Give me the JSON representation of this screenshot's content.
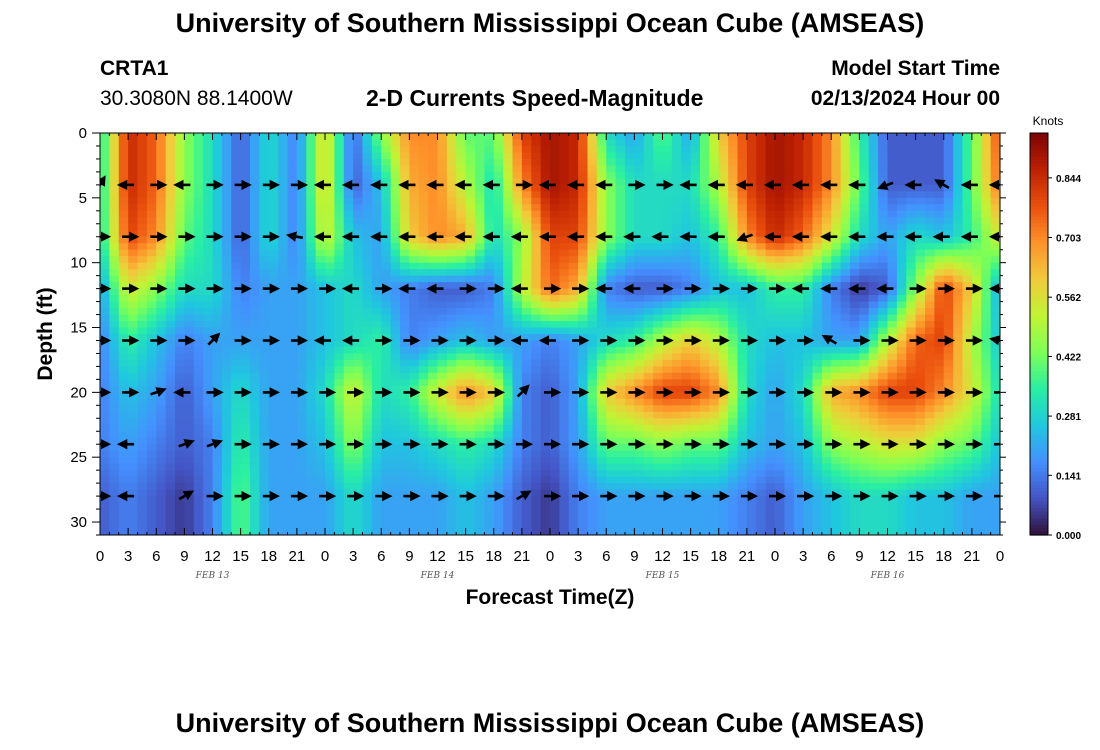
{
  "header": {
    "title": "University of Southern Mississippi Ocean Cube (AMSEAS)",
    "station": "CRTA1",
    "coords": "30.3080N  88.1400W",
    "plot_title": "2-D Currents Speed-Magnitude",
    "model_start_label": "Model Start Time",
    "model_start_value": "02/13/2024 Hour 00"
  },
  "footer": {
    "title": "University of Southern Mississippi Ocean Cube (AMSEAS)"
  },
  "colorbar": {
    "units": "Knots",
    "ticks": [
      "0.000",
      "0.141",
      "0.281",
      "0.422",
      "0.562",
      "0.703",
      "0.844"
    ],
    "max": 0.95,
    "stops": [
      "#30123b",
      "#4454c4",
      "#4490fe",
      "#1fc8de",
      "#29efa2",
      "#7dff56",
      "#c1f334",
      "#f1ca3a",
      "#fe922a",
      "#ea4f0d",
      "#be2102",
      "#7a0403"
    ]
  },
  "chart_data": {
    "type": "heatmap",
    "title": "2-D Currents Speed-Magnitude",
    "xlabel": "Forecast Time(Z)",
    "ylabel": "Depth (ft)",
    "x_ticks": [
      "0",
      "3",
      "6",
      "9",
      "12",
      "15",
      "18",
      "21",
      "0",
      "3",
      "6",
      "9",
      "12",
      "15",
      "18",
      "21",
      "0",
      "3",
      "6",
      "9",
      "12",
      "15",
      "18",
      "21",
      "0",
      "3",
      "6",
      "9",
      "12",
      "15",
      "18",
      "21",
      "0"
    ],
    "date_labels": [
      {
        "text": "FEB 13",
        "hour": 12
      },
      {
        "text": "FEB 14",
        "hour": 36
      },
      {
        "text": "FEB 15",
        "hour": 60
      },
      {
        "text": "FEB 16",
        "hour": 84
      }
    ],
    "y_ticks": [
      0,
      5,
      10,
      15,
      20,
      25,
      30
    ],
    "xlim_hours": [
      0,
      96
    ],
    "ylim_ft": [
      0,
      31
    ],
    "arrow_depths_ft": [
      4,
      8,
      12,
      16,
      20,
      24,
      28
    ],
    "depth_levels_ft": [
      0,
      4,
      8,
      12,
      16,
      20,
      24,
      28,
      31
    ],
    "time_hours": [
      0,
      3,
      6,
      9,
      12,
      15,
      18,
      21,
      24,
      27,
      30,
      33,
      36,
      39,
      42,
      45,
      48,
      51,
      54,
      57,
      60,
      63,
      66,
      69,
      72,
      75,
      78,
      81,
      84,
      87,
      90,
      93,
      96
    ],
    "speed_knots": [
      [
        0.3,
        0.85,
        0.75,
        0.45,
        0.3,
        0.1,
        0.3,
        0.15,
        0.6,
        0.1,
        0.45,
        0.7,
        0.7,
        0.4,
        0.4,
        0.8,
        0.9,
        0.85,
        0.3,
        0.2,
        0.4,
        0.2,
        0.6,
        0.8,
        0.9,
        0.85,
        0.7,
        0.35,
        0.1,
        0.1,
        0.1,
        0.4,
        0.8
      ],
      [
        0.3,
        0.85,
        0.75,
        0.45,
        0.3,
        0.1,
        0.3,
        0.15,
        0.6,
        0.1,
        0.25,
        0.65,
        0.7,
        0.5,
        0.3,
        0.7,
        0.9,
        0.85,
        0.45,
        0.3,
        0.3,
        0.3,
        0.5,
        0.8,
        0.9,
        0.85,
        0.7,
        0.4,
        0.1,
        0.1,
        0.1,
        0.4,
        0.75
      ],
      [
        0.3,
        0.8,
        0.7,
        0.4,
        0.3,
        0.1,
        0.3,
        0.15,
        0.55,
        0.25,
        0.2,
        0.6,
        0.7,
        0.65,
        0.3,
        0.45,
        0.8,
        0.8,
        0.45,
        0.3,
        0.3,
        0.25,
        0.35,
        0.7,
        0.85,
        0.75,
        0.55,
        0.3,
        0.2,
        0.3,
        0.25,
        0.35,
        0.55
      ],
      [
        0.2,
        0.55,
        0.45,
        0.3,
        0.3,
        0.15,
        0.2,
        0.2,
        0.25,
        0.3,
        0.2,
        0.15,
        0.1,
        0.1,
        0.15,
        0.5,
        0.75,
        0.65,
        0.15,
        0.1,
        0.1,
        0.15,
        0.25,
        0.25,
        0.35,
        0.35,
        0.15,
        0.05,
        0.1,
        0.45,
        0.8,
        0.6,
        0.2
      ],
      [
        0.15,
        0.35,
        0.25,
        0.15,
        0.2,
        0.2,
        0.2,
        0.2,
        0.25,
        0.3,
        0.35,
        0.15,
        0.2,
        0.25,
        0.2,
        0.2,
        0.15,
        0.2,
        0.3,
        0.35,
        0.5,
        0.6,
        0.5,
        0.3,
        0.25,
        0.25,
        0.2,
        0.2,
        0.5,
        0.75,
        0.8,
        0.5,
        0.25
      ],
      [
        0.15,
        0.25,
        0.2,
        0.1,
        0.2,
        0.3,
        0.2,
        0.2,
        0.3,
        0.55,
        0.3,
        0.35,
        0.55,
        0.7,
        0.6,
        0.15,
        0.1,
        0.2,
        0.6,
        0.7,
        0.8,
        0.8,
        0.7,
        0.3,
        0.2,
        0.3,
        0.65,
        0.7,
        0.8,
        0.8,
        0.7,
        0.55,
        0.3
      ],
      [
        0.15,
        0.2,
        0.15,
        0.1,
        0.15,
        0.35,
        0.2,
        0.2,
        0.25,
        0.45,
        0.25,
        0.25,
        0.3,
        0.35,
        0.3,
        0.15,
        0.1,
        0.2,
        0.4,
        0.4,
        0.45,
        0.4,
        0.4,
        0.25,
        0.2,
        0.25,
        0.45,
        0.5,
        0.55,
        0.55,
        0.45,
        0.4,
        0.25
      ],
      [
        0.1,
        0.15,
        0.1,
        0.05,
        0.15,
        0.4,
        0.2,
        0.2,
        0.2,
        0.3,
        0.2,
        0.2,
        0.2,
        0.25,
        0.2,
        0.1,
        0.05,
        0.15,
        0.2,
        0.2,
        0.2,
        0.2,
        0.2,
        0.15,
        0.1,
        0.2,
        0.25,
        0.3,
        0.3,
        0.25,
        0.25,
        0.2,
        0.2
      ],
      [
        0.1,
        0.15,
        0.1,
        0.05,
        0.15,
        0.4,
        0.2,
        0.2,
        0.2,
        0.3,
        0.2,
        0.2,
        0.2,
        0.25,
        0.2,
        0.1,
        0.05,
        0.15,
        0.2,
        0.2,
        0.2,
        0.2,
        0.2,
        0.15,
        0.1,
        0.2,
        0.25,
        0.3,
        0.3,
        0.25,
        0.25,
        0.2,
        0.2
      ]
    ],
    "direction_deg": [
      [
        60,
        180,
        0,
        180,
        0,
        0,
        0,
        0,
        180,
        180,
        180,
        180,
        180,
        180,
        180,
        0,
        180,
        180,
        180,
        0,
        0,
        180,
        180,
        180,
        180,
        180,
        180,
        180,
        200,
        180,
        150,
        180,
        180
      ],
      [
        0,
        0,
        0,
        0,
        0,
        0,
        0,
        170,
        180,
        180,
        180,
        180,
        180,
        180,
        180,
        180,
        180,
        180,
        180,
        180,
        180,
        180,
        180,
        200,
        180,
        180,
        180,
        180,
        180,
        180,
        180,
        180,
        180
      ],
      [
        0,
        0,
        0,
        0,
        0,
        0,
        0,
        0,
        0,
        180,
        0,
        180,
        180,
        0,
        0,
        180,
        0,
        0,
        180,
        180,
        0,
        0,
        0,
        0,
        0,
        180,
        180,
        180,
        180,
        0,
        0,
        0,
        180
      ],
      [
        0,
        0,
        0,
        0,
        45,
        0,
        0,
        0,
        180,
        180,
        0,
        0,
        0,
        0,
        0,
        180,
        180,
        0,
        0,
        0,
        0,
        0,
        0,
        0,
        0,
        0,
        150,
        0,
        0,
        0,
        0,
        0,
        170
      ],
      [
        0,
        0,
        20,
        180,
        0,
        0,
        0,
        0,
        0,
        0,
        0,
        0,
        0,
        0,
        0,
        45,
        0,
        0,
        0,
        0,
        0,
        0,
        0,
        0,
        0,
        0,
        0,
        0,
        0,
        0,
        0,
        0,
        0
      ],
      [
        0,
        180,
        null,
        20,
        20,
        0,
        0,
        0,
        0,
        0,
        0,
        0,
        0,
        0,
        0,
        0,
        0,
        0,
        0,
        0,
        0,
        0,
        0,
        0,
        0,
        0,
        0,
        0,
        0,
        0,
        0,
        0,
        0
      ],
      [
        0,
        180,
        null,
        30,
        0,
        0,
        0,
        0,
        0,
        0,
        0,
        0,
        0,
        0,
        0,
        30,
        0,
        0,
        0,
        0,
        0,
        0,
        0,
        0,
        0,
        0,
        0,
        0,
        0,
        0,
        0,
        0,
        0
      ]
    ]
  }
}
